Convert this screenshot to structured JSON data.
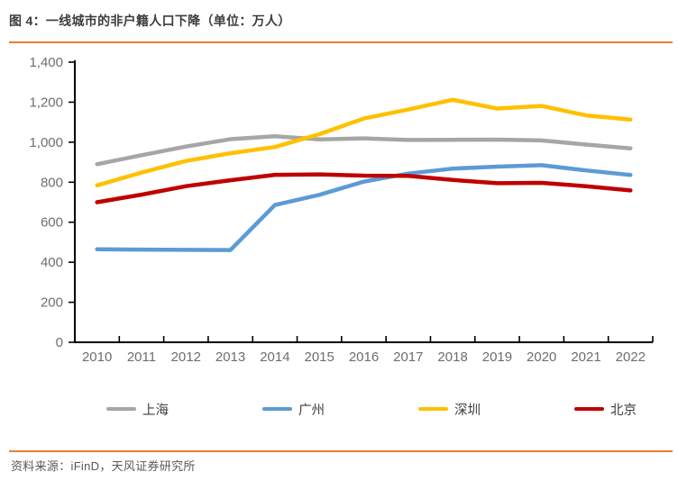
{
  "header": {
    "title": "图 4：一线城市的非户籍人口下降（单位：万人）"
  },
  "footer": {
    "source_label": "资料来源：iFinD，天风证券研究所"
  },
  "colors": {
    "accent_orange": "#E97E32",
    "axis": "#000000",
    "tick_label": "#6E6E6E",
    "title_text": "#3D3D3D",
    "background": "#FFFFFF"
  },
  "chart_data": {
    "type": "line",
    "title": "图 4：一线城市的非户籍人口下降（单位：万人）",
    "unit": "万人",
    "categories": [
      "2010",
      "2011",
      "2012",
      "2013",
      "2014",
      "2015",
      "2016",
      "2017",
      "2018",
      "2019",
      "2020",
      "2021",
      "2022"
    ],
    "series": [
      {
        "name": "上海",
        "color": "#A6A6A6",
        "values": [
          890,
          935,
          978,
          1015,
          1030,
          1014,
          1019,
          1011,
          1012,
          1013,
          1009,
          988,
          969
        ]
      },
      {
        "name": "广州",
        "color": "#5B9BD5",
        "values": [
          465,
          463,
          462,
          461,
          686,
          737,
          803,
          843,
          868,
          878,
          885,
          859,
          836
        ]
      },
      {
        "name": "深圳",
        "color": "#FFC000",
        "values": [
          784,
          848,
          906,
          945,
          976,
          1040,
          1118,
          1163,
          1212,
          1168,
          1181,
          1134,
          1113
        ]
      },
      {
        "name": "北京",
        "color": "#C00000",
        "values": [
          700,
          738,
          780,
          810,
          837,
          839,
          833,
          832,
          811,
          795,
          797,
          780,
          759
        ]
      }
    ],
    "ylim": [
      0,
      1400
    ],
    "ytick_step": 200,
    "ytick_labels": [
      "0",
      "200",
      "400",
      "600",
      "800",
      "1,000",
      "1,200",
      "1,400"
    ],
    "xlabel": "",
    "ylabel": "",
    "grid": false,
    "legend_position": "bottom"
  }
}
